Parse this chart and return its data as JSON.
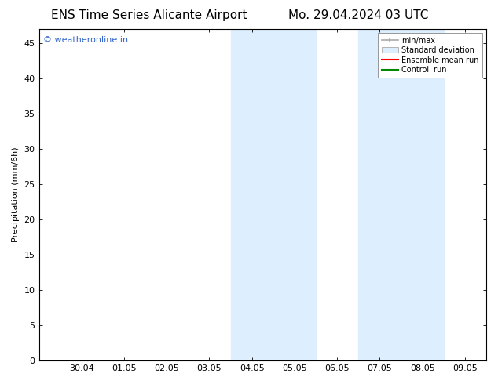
{
  "title_left": "ENS Time Series Alicante Airport",
  "title_right": "Mo. 29.04.2024 03 UTC",
  "ylabel": "Precipitation (mm/6h)",
  "ylim": [
    0,
    47
  ],
  "yticks": [
    0,
    5,
    10,
    15,
    20,
    25,
    30,
    35,
    40,
    45
  ],
  "xtick_labels": [
    "30.04",
    "01.05",
    "02.05",
    "03.05",
    "04.05",
    "05.05",
    "06.05",
    "07.05",
    "08.05",
    "09.05"
  ],
  "xtick_positions": [
    1,
    2,
    3,
    4,
    5,
    6,
    7,
    8,
    9,
    10
  ],
  "xlim": [
    0.0,
    10.5
  ],
  "shaded_regions": [
    [
      4.5,
      5.5
    ],
    [
      5.5,
      6.5
    ],
    [
      7.5,
      8.5
    ],
    [
      8.5,
      9.5
    ]
  ],
  "shade_color": "#ddeeff",
  "shade_edge_color": "#b0cce0",
  "watermark_text": "© weatheronline.in",
  "watermark_color": "#3366cc",
  "background_color": "#ffffff",
  "plot_bg_color": "#ffffff",
  "spine_color": "#000000",
  "tick_color": "#000000",
  "legend_minmax_color": "#aaaaaa",
  "legend_std_face": "#ddeeff",
  "legend_std_edge": "#aaaaaa",
  "legend_ens_color": "#ff0000",
  "legend_ctrl_color": "#008800",
  "title_fontsize": 11,
  "ylabel_fontsize": 8,
  "tick_fontsize": 8,
  "watermark_fontsize": 8,
  "legend_fontsize": 7
}
